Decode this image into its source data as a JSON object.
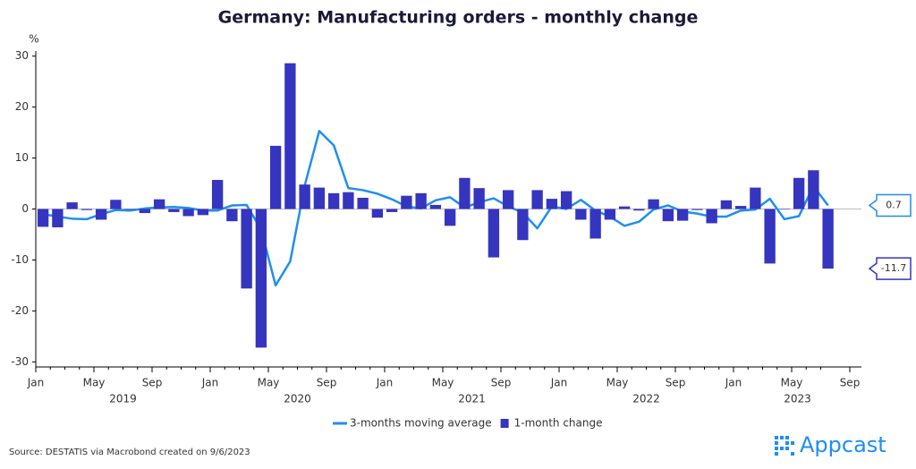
{
  "chart_data": {
    "type": "bar",
    "title": "Germany: Manufacturing orders - monthly change",
    "y_unit": "%",
    "source": "Source: DESTATIS via Macrobond created on 9/6/2023",
    "brand": "Appcast",
    "x": [
      "2019-01",
      "2019-02",
      "2019-03",
      "2019-04",
      "2019-05",
      "2019-06",
      "2019-07",
      "2019-08",
      "2019-09",
      "2019-10",
      "2019-11",
      "2019-12",
      "2020-01",
      "2020-02",
      "2020-03",
      "2020-04",
      "2020-05",
      "2020-06",
      "2020-07",
      "2020-08",
      "2020-09",
      "2020-10",
      "2020-11",
      "2020-12",
      "2021-01",
      "2021-02",
      "2021-03",
      "2021-04",
      "2021-05",
      "2021-06",
      "2021-07",
      "2021-08",
      "2021-09",
      "2021-10",
      "2021-11",
      "2021-12",
      "2022-01",
      "2022-02",
      "2022-03",
      "2022-04",
      "2022-05",
      "2022-06",
      "2022-07",
      "2022-08",
      "2022-09",
      "2022-10",
      "2022-11",
      "2022-12",
      "2023-01",
      "2023-02",
      "2023-03",
      "2023-04",
      "2023-05",
      "2023-06",
      "2023-07"
    ],
    "xticks": [
      {
        "value": "2019-01",
        "label": "Jan"
      },
      {
        "value": "2019-05",
        "label": "May"
      },
      {
        "value": "2019-09",
        "label": "Sep"
      },
      {
        "value": "2020-01",
        "label": "Jan"
      },
      {
        "value": "2020-05",
        "label": "May"
      },
      {
        "value": "2020-09",
        "label": "Sep"
      },
      {
        "value": "2021-01",
        "label": "Jan"
      },
      {
        "value": "2021-05",
        "label": "May"
      },
      {
        "value": "2021-09",
        "label": "Sep"
      },
      {
        "value": "2022-01",
        "label": "Jan"
      },
      {
        "value": "2022-05",
        "label": "May"
      },
      {
        "value": "2022-09",
        "label": "Sep"
      },
      {
        "value": "2023-01",
        "label": "Jan"
      },
      {
        "value": "2023-05",
        "label": "May"
      },
      {
        "value": "2023-09",
        "label": "Sep"
      }
    ],
    "year_labels": [
      "2019",
      "2020",
      "2021",
      "2022",
      "2023"
    ],
    "series": [
      {
        "name": "3-months moving average",
        "type": "line",
        "color": "#1f8ef1",
        "values": [
          -1.0,
          -1.5,
          -1.9,
          -2.0,
          -1.0,
          -0.2,
          -0.3,
          0.1,
          0.3,
          0.4,
          0.2,
          -0.3,
          -0.3,
          0.7,
          0.8,
          -4.0,
          -15.0,
          -10.3,
          4.6,
          15.3,
          12.5,
          4.1,
          3.7,
          3.0,
          1.9,
          0.5,
          0.1,
          1.7,
          2.3,
          0.3,
          1.3,
          2.1,
          0.5,
          -0.7,
          -3.8,
          0.5,
          0.0,
          1.8,
          -0.3,
          -1.5,
          -3.3,
          -2.5,
          -0.1,
          0.7,
          -0.5,
          -0.9,
          -1.5,
          -1.5,
          -0.3,
          -0.1,
          2.0,
          -2.0,
          -1.4,
          4.5,
          0.7
        ]
      },
      {
        "name": "1-month change",
        "type": "bar",
        "color": "#3535c0",
        "values": [
          -3.5,
          -3.6,
          1.3,
          -0.2,
          -2.1,
          1.8,
          -0.1,
          -0.8,
          1.9,
          -0.6,
          -1.4,
          -1.2,
          5.7,
          -2.4,
          -15.6,
          -27.2,
          12.4,
          28.6,
          4.8,
          4.2,
          3.1,
          3.3,
          2.2,
          -1.7,
          -0.6,
          2.6,
          3.1,
          0.8,
          -3.3,
          6.1,
          4.1,
          -9.5,
          3.7,
          -6.1,
          3.7,
          2.0,
          3.5,
          -2.1,
          -5.8,
          -2.1,
          0.5,
          -0.3,
          1.9,
          -2.4,
          -2.3,
          -0.2,
          -2.8,
          1.7,
          0.6,
          4.2,
          -10.7,
          -0.1,
          6.1,
          7.6,
          -11.7
        ]
      }
    ],
    "ylim": [
      -31,
      31
    ],
    "yticks": [
      -30,
      -20,
      -10,
      0,
      10,
      20,
      30
    ],
    "grid": false
  }
}
